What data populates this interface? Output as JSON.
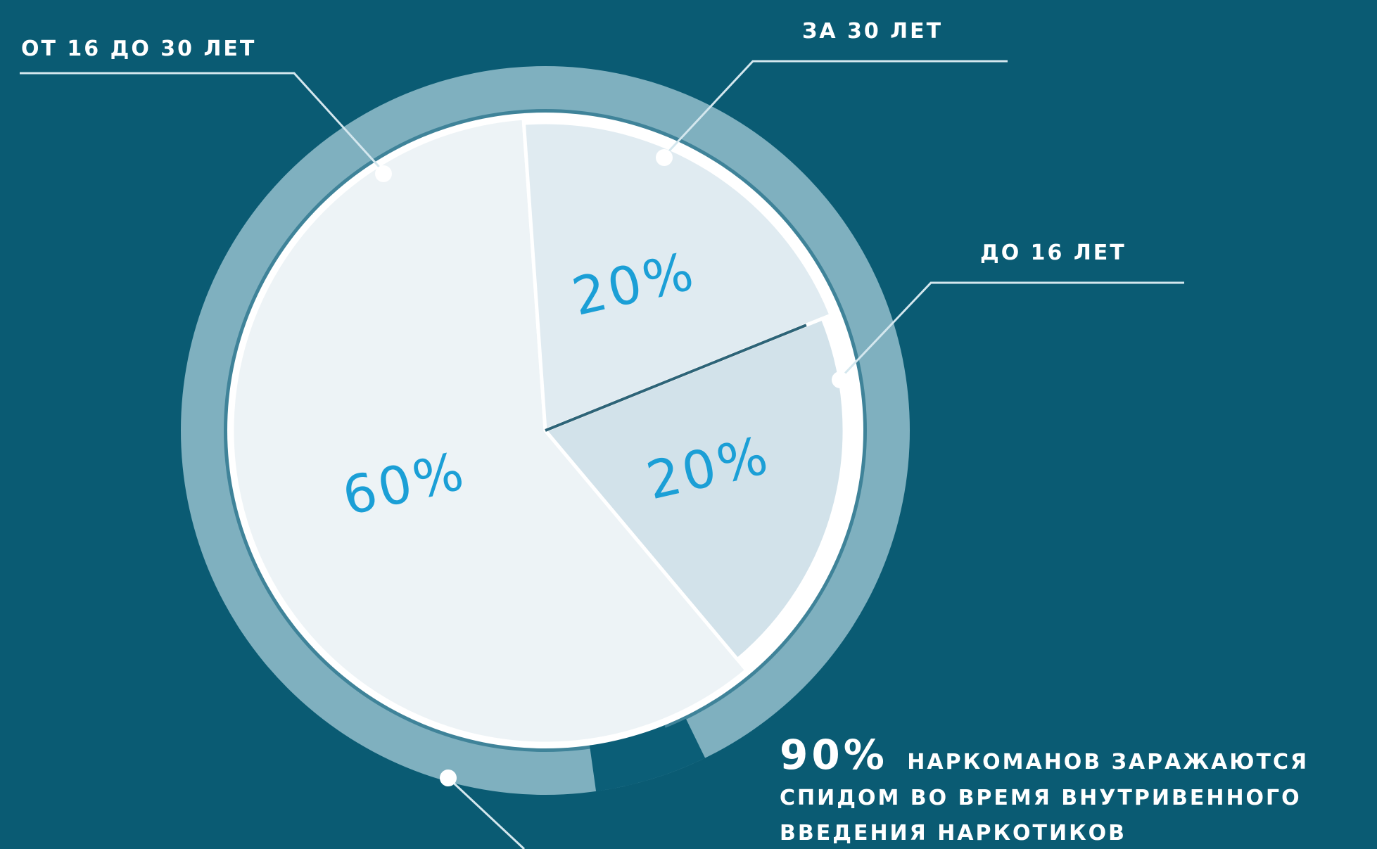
{
  "colors": {
    "background": "#0a5b73",
    "ring_light": "#7fb0bf",
    "ring_dark": "#3f8399",
    "ring_accent": "#0b5e77",
    "slice_main": "#edf3f6",
    "slice_top": "#e0ebf1",
    "slice_right": "#d2e2ea",
    "percent_text": "#1b9fd6",
    "leader_line": "#d4e7ee",
    "white": "#ffffff"
  },
  "chart_data": {
    "type": "pie",
    "title": "",
    "slices": [
      {
        "label": "ОТ 16 ДО 30 ЛЕТ",
        "value": 60,
        "value_label": "60%"
      },
      {
        "label": "ЗА 30 ЛЕТ",
        "value": 20,
        "value_label": "20%"
      },
      {
        "label": "ДО 16 ЛЕТ",
        "value": 20,
        "value_label": "20%"
      }
    ]
  },
  "note": {
    "highlight": "90%",
    "line1": "НАРКОМАНОВ ЗАРАЖАЮТСЯ",
    "line2": "СПИДОМ ВО ВРЕМЯ ВНУТРИВЕННОГО",
    "line3": "ВВЕДЕНИЯ НАРКОТИКОВ"
  }
}
